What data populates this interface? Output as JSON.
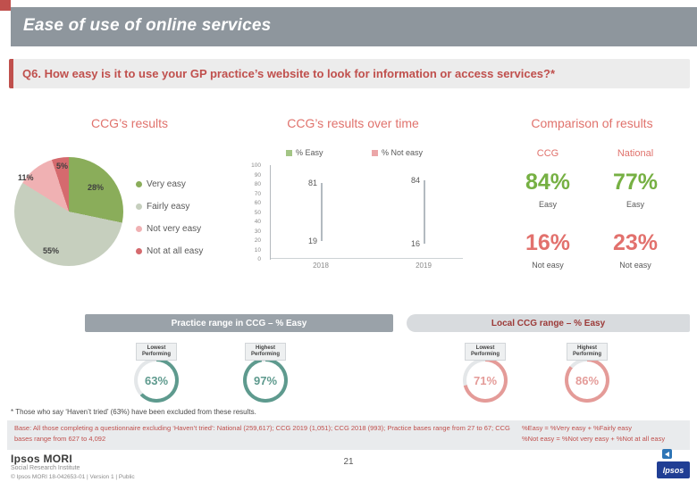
{
  "colors": {
    "accent_red": "#c0504d",
    "header_gray": "#8e969d",
    "section_salmon": "#e0726c",
    "easy_green": "#76b043",
    "not_easy_red": "#e2716d",
    "gauge_teal": "#5e9a8e",
    "gauge_pink": "#e49b98"
  },
  "header": {
    "title": "Ease of use of online services"
  },
  "question": {
    "text": "Q6. How easy is it to use your GP practice’s website to look for information or access services?*"
  },
  "sections": {
    "left": "CCG’s results",
    "center": "CCG’s results over time",
    "right": "Comparison of results"
  },
  "chart_data": [
    {
      "type": "pie",
      "title": "CCG’s results",
      "categories": [
        "Very easy",
        "Fairly easy",
        "Not very easy",
        "Not at all easy"
      ],
      "values": [
        28,
        55,
        11,
        5
      ],
      "labels": [
        "28%",
        "55%",
        "11%",
        "5%"
      ],
      "colors": [
        "#8aad5a",
        "#c6cfbe",
        "#f0b1b3",
        "#d56a6e"
      ]
    },
    {
      "type": "bar",
      "subtype": "high-low",
      "title": "CCG’s results over time",
      "categories": [
        "2018",
        "2019"
      ],
      "series": [
        {
          "name": "% Easy",
          "values": [
            81,
            84
          ],
          "color": "#a3c585"
        },
        {
          "name": "% Not easy",
          "values": [
            19,
            16
          ],
          "color": "#eba6a8"
        }
      ],
      "ylim": [
        0,
        100
      ],
      "yticks": [
        0,
        10,
        20,
        30,
        40,
        50,
        60,
        70,
        80,
        90,
        100
      ],
      "legend_position": "top"
    },
    {
      "type": "table",
      "title": "Comparison of results",
      "columns": [
        "CCG",
        "National"
      ],
      "rows": [
        {
          "label": "Easy",
          "values": [
            "84%",
            "77%"
          ]
        },
        {
          "label": "Not easy",
          "values": [
            "16%",
            "23%"
          ]
        }
      ]
    },
    {
      "type": "gauge",
      "title": "Practice range in CCG – % Easy",
      "items": [
        {
          "label": "Lowest Performing",
          "value": 63,
          "display": "63%"
        },
        {
          "label": "Highest Performing",
          "value": 97,
          "display": "97%"
        }
      ]
    },
    {
      "type": "gauge",
      "title": "Local CCG range – % Easy",
      "items": [
        {
          "label": "Lowest Performing",
          "value": 71,
          "display": "71%"
        },
        {
          "label": "Highest Performing",
          "value": 86,
          "display": "86%"
        }
      ]
    }
  ],
  "footnote": "* Those who say ‘Haven’t tried’ (63%) have been excluded from these results.",
  "base": {
    "text": "Base: All those completing a questionnaire excluding ‘Haven’t tried’: National (259,617); CCG 2019 (1,051); CCG 2018 (993); Practice bases range from 27 to 67; CCG bases range from 627 to 4,092"
  },
  "formulas": {
    "easy": "%Easy = %Very easy + %Fairly easy",
    "not_easy": "%Not easy = %Not very easy + %Not at all easy"
  },
  "footer": {
    "logo_line1": "Ipsos MORI",
    "logo_line2": "Social Research Institute",
    "copyright": "© Ipsos MORI    18-042653-01 | Version 1 | Public",
    "page_number": "21",
    "ipsos_logo_text": "Ipsos"
  }
}
